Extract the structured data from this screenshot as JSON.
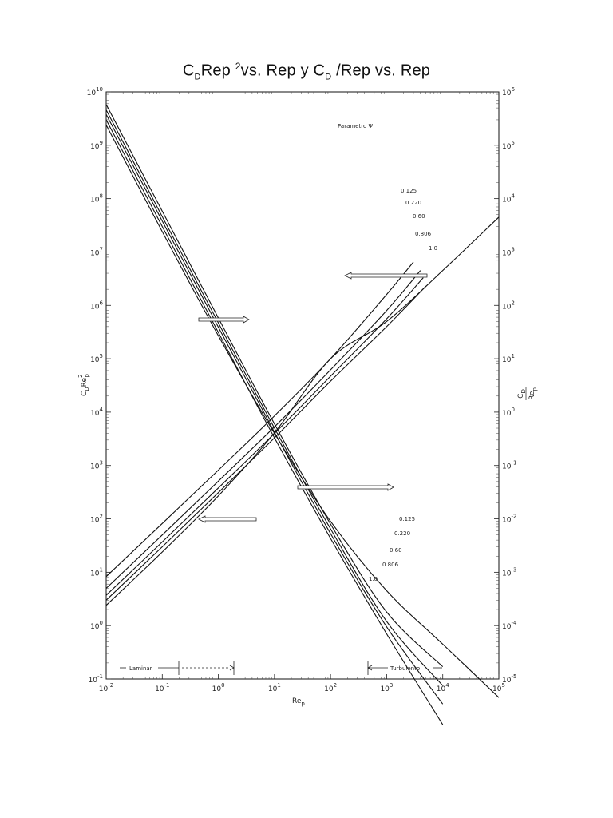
{
  "page": {
    "title_parts": [
      "C",
      "D",
      "Rep ",
      "2",
      "vs. Rep   y C",
      "D",
      " /Rep vs. Rep"
    ]
  },
  "chart_data": {
    "type": "line",
    "title": "CDRep²vs. Rep y CD /Rep vs. Rep",
    "x_scale": "log",
    "y_scale_left": "log",
    "y_scale_right": "log",
    "xlim": [
      0.01,
      100000
    ],
    "ylim_left": [
      0.1,
      10000000000
    ],
    "ylim_right": [
      1e-05,
      1000000
    ],
    "xlabel": "Re",
    "xlabel_sub": "p",
    "ylabel_left": "CDRe²p",
    "ylabel_right": "CD/Rep",
    "x_ticks": [
      {
        "base": "10",
        "exp": "-2"
      },
      {
        "base": "10",
        "exp": "-1"
      },
      {
        "base": "10",
        "exp": "0"
      },
      {
        "base": "10",
        "exp": "1"
      },
      {
        "base": "10",
        "exp": "2"
      },
      {
        "base": "10",
        "exp": "3"
      },
      {
        "base": "10",
        "exp": "4"
      },
      {
        "base": "10",
        "exp": "5"
      }
    ],
    "left_ticks": [
      {
        "base": "10",
        "exp": "-1"
      },
      {
        "base": "10",
        "exp": "0"
      },
      {
        "base": "10",
        "exp": "1"
      },
      {
        "base": "10",
        "exp": "2"
      },
      {
        "base": "10",
        "exp": "3"
      },
      {
        "base": "10",
        "exp": "4"
      },
      {
        "base": "10",
        "exp": "5"
      },
      {
        "base": "10",
        "exp": "6"
      },
      {
        "base": "10",
        "exp": "7"
      },
      {
        "base": "10",
        "exp": "8"
      },
      {
        "base": "10",
        "exp": "9"
      },
      {
        "base": "10",
        "exp": "10"
      }
    ],
    "right_ticks": [
      {
        "base": "10",
        "exp": "-5"
      },
      {
        "base": "10",
        "exp": "-4"
      },
      {
        "base": "10",
        "exp": "-3"
      },
      {
        "base": "10",
        "exp": "-2"
      },
      {
        "base": "10",
        "exp": "-1"
      },
      {
        "base": "10",
        "exp": "0"
      },
      {
        "base": "10",
        "exp": "1"
      },
      {
        "base": "10",
        "exp": "2"
      },
      {
        "base": "10",
        "exp": "3"
      },
      {
        "base": "10",
        "exp": "4"
      },
      {
        "base": "10",
        "exp": "5"
      },
      {
        "base": "10",
        "exp": "6"
      }
    ],
    "legend_title": "Parametro Ψ",
    "regime_labels": [
      "Laminar",
      "Turbulento"
    ],
    "series_CDRe2": [
      {
        "name": "0.125",
        "x": [
          0.01,
          0.1,
          1,
          10,
          100,
          1000,
          3000
        ],
        "y": [
          8.3,
          82,
          820,
          8500,
          100000,
          1600000,
          6500000
        ]
      },
      {
        "name": "0.220",
        "x": [
          0.01,
          0.1,
          1,
          10,
          100,
          1000,
          4000
        ],
        "y": [
          5,
          50,
          510,
          5300,
          62000,
          800000,
          4500000
        ]
      },
      {
        "name": "0.60",
        "x": [
          0.01,
          0.1,
          1,
          10,
          100,
          1000,
          4500
        ],
        "y": [
          3.7,
          37,
          380,
          4000,
          47000,
          560000,
          3300000
        ]
      },
      {
        "name": "0.806",
        "x": [
          0.01,
          0.1,
          1,
          10,
          100,
          1000,
          5000
        ],
        "y": [
          3,
          30,
          310,
          3300,
          38000,
          400000,
          2300000
        ]
      },
      {
        "name": "1.0",
        "x": [
          0.01,
          0.1,
          1,
          10,
          100,
          1000,
          10000,
          100000
        ],
        "y": [
          2.4,
          24,
          270,
          4100,
          100000,
          500000,
          4500000,
          45000000
        ]
      }
    ],
    "series_CD_over_Re": [
      {
        "name": "0.125",
        "x": [
          0.01,
          0.1,
          1,
          10,
          100,
          1000,
          10000
        ],
        "y": [
          580000,
          5800,
          58,
          0.6,
          0.008,
          0.00018,
          1.7e-05
        ]
      },
      {
        "name": "0.220",
        "x": [
          0.01,
          0.1,
          1,
          10,
          100,
          1000,
          10000
        ],
        "y": [
          460000,
          4600,
          47,
          0.5,
          0.0065,
          0.00012,
          7.5e-06
        ]
      },
      {
        "name": "0.60",
        "x": [
          0.01,
          0.1,
          1,
          10,
          100,
          1000,
          10000
        ],
        "y": [
          380000,
          3800,
          39,
          0.42,
          0.0053,
          9.5e-05,
          3.4e-06
        ]
      },
      {
        "name": "0.806",
        "x": [
          0.01,
          0.1,
          1,
          10,
          100,
          1000,
          10000
        ],
        "y": [
          300000,
          3000,
          31,
          0.33,
          0.0043,
          7e-05,
          1.4e-06
        ]
      },
      {
        "name": "1.0",
        "x": [
          0.01,
          0.1,
          1,
          10,
          100,
          1000,
          10000,
          100000
        ],
        "y": [
          240000,
          2400,
          27,
          0.4,
          0.009,
          0.00045,
          4.5e-05,
          4.5e-06
        ]
      }
    ]
  }
}
